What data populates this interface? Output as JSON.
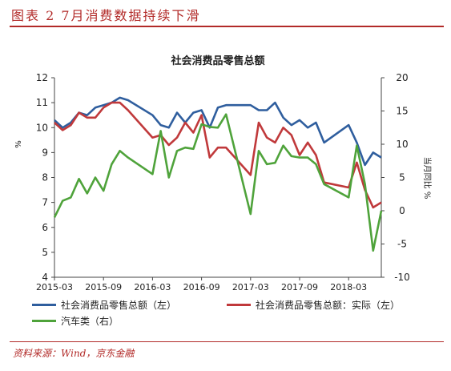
{
  "header": {
    "title": "图表 2 7月消费数据持续下滑"
  },
  "source": "资料来源：Wind，京东金融",
  "chart_data": {
    "type": "line",
    "title": "社会消费品零售总额",
    "ylabel_left": "%",
    "ylabel_right": "当月同比 %",
    "ylim_left": [
      4,
      12
    ],
    "ylim_right": [
      -10,
      20
    ],
    "yticks_left": [
      4,
      5,
      6,
      7,
      8,
      9,
      10,
      11,
      12
    ],
    "yticks_right": [
      -10,
      -5,
      0,
      5,
      10,
      15,
      20
    ],
    "x_tick_labels": [
      "2015-03",
      "2015-09",
      "2016-03",
      "2016-09",
      "2017-03",
      "2017-09",
      "2018-03"
    ],
    "x": [
      "2015-03",
      "2015-04",
      "2015-05",
      "2015-06",
      "2015-07",
      "2015-08",
      "2015-09",
      "2015-10",
      "2015-11",
      "2015-12",
      "2016-01",
      "2016-02",
      "2016-03",
      "2016-04",
      "2016-05",
      "2016-06",
      "2016-07",
      "2016-08",
      "2016-09",
      "2016-10",
      "2016-11",
      "2016-12",
      "2017-01",
      "2017-02",
      "2017-03",
      "2017-04",
      "2017-05",
      "2017-06",
      "2017-07",
      "2017-08",
      "2017-09",
      "2017-10",
      "2017-11",
      "2017-12",
      "2018-01",
      "2018-02",
      "2018-03",
      "2018-04",
      "2018-05",
      "2018-06",
      "2018-07"
    ],
    "series": [
      {
        "name": "社会消费品零售总额（左）",
        "axis": "left",
        "color": "#2f5e9e",
        "values": [
          10.3,
          10.0,
          10.2,
          10.6,
          10.5,
          10.8,
          10.9,
          11.0,
          11.2,
          11.1,
          null,
          null,
          10.5,
          10.1,
          10.0,
          10.6,
          10.2,
          10.6,
          10.7,
          10.0,
          10.8,
          10.9,
          null,
          null,
          10.9,
          10.7,
          10.7,
          11.0,
          10.4,
          10.1,
          10.3,
          10.0,
          10.2,
          9.4,
          null,
          null,
          10.1,
          9.4,
          8.5,
          9.0,
          8.8
        ]
      },
      {
        "name": "社会消费品零售总额：实际（左）",
        "axis": "left",
        "color": "#c0393b",
        "values": [
          10.2,
          9.9,
          10.1,
          10.6,
          10.4,
          10.4,
          10.8,
          11.0,
          11.0,
          10.7,
          null,
          null,
          9.6,
          9.7,
          9.3,
          9.6,
          10.2,
          9.8,
          10.5,
          8.8,
          9.2,
          9.2,
          null,
          null,
          8.1,
          10.2,
          9.6,
          9.4,
          10.0,
          9.7,
          8.9,
          9.4,
          8.9,
          7.8,
          null,
          null,
          7.6,
          8.6,
          7.5,
          6.8,
          7.0
        ]
      },
      {
        "name": "汽车类（右）",
        "axis": "right",
        "color": "#4fa33b",
        "values": [
          -1.0,
          1.5,
          2.0,
          4.8,
          2.6,
          5.0,
          3.0,
          7.0,
          9.0,
          8.0,
          null,
          null,
          5.5,
          12.0,
          5.0,
          9.0,
          9.5,
          9.3,
          13.0,
          12.6,
          12.5,
          14.5,
          null,
          null,
          -0.5,
          9.0,
          7.0,
          7.2,
          9.8,
          8.2,
          8.0,
          8.0,
          7.0,
          4.0,
          null,
          null,
          2.0,
          9.8,
          4.0,
          -6.0,
          0.0
        ]
      }
    ],
    "legend": "bottom",
    "grid": false
  }
}
